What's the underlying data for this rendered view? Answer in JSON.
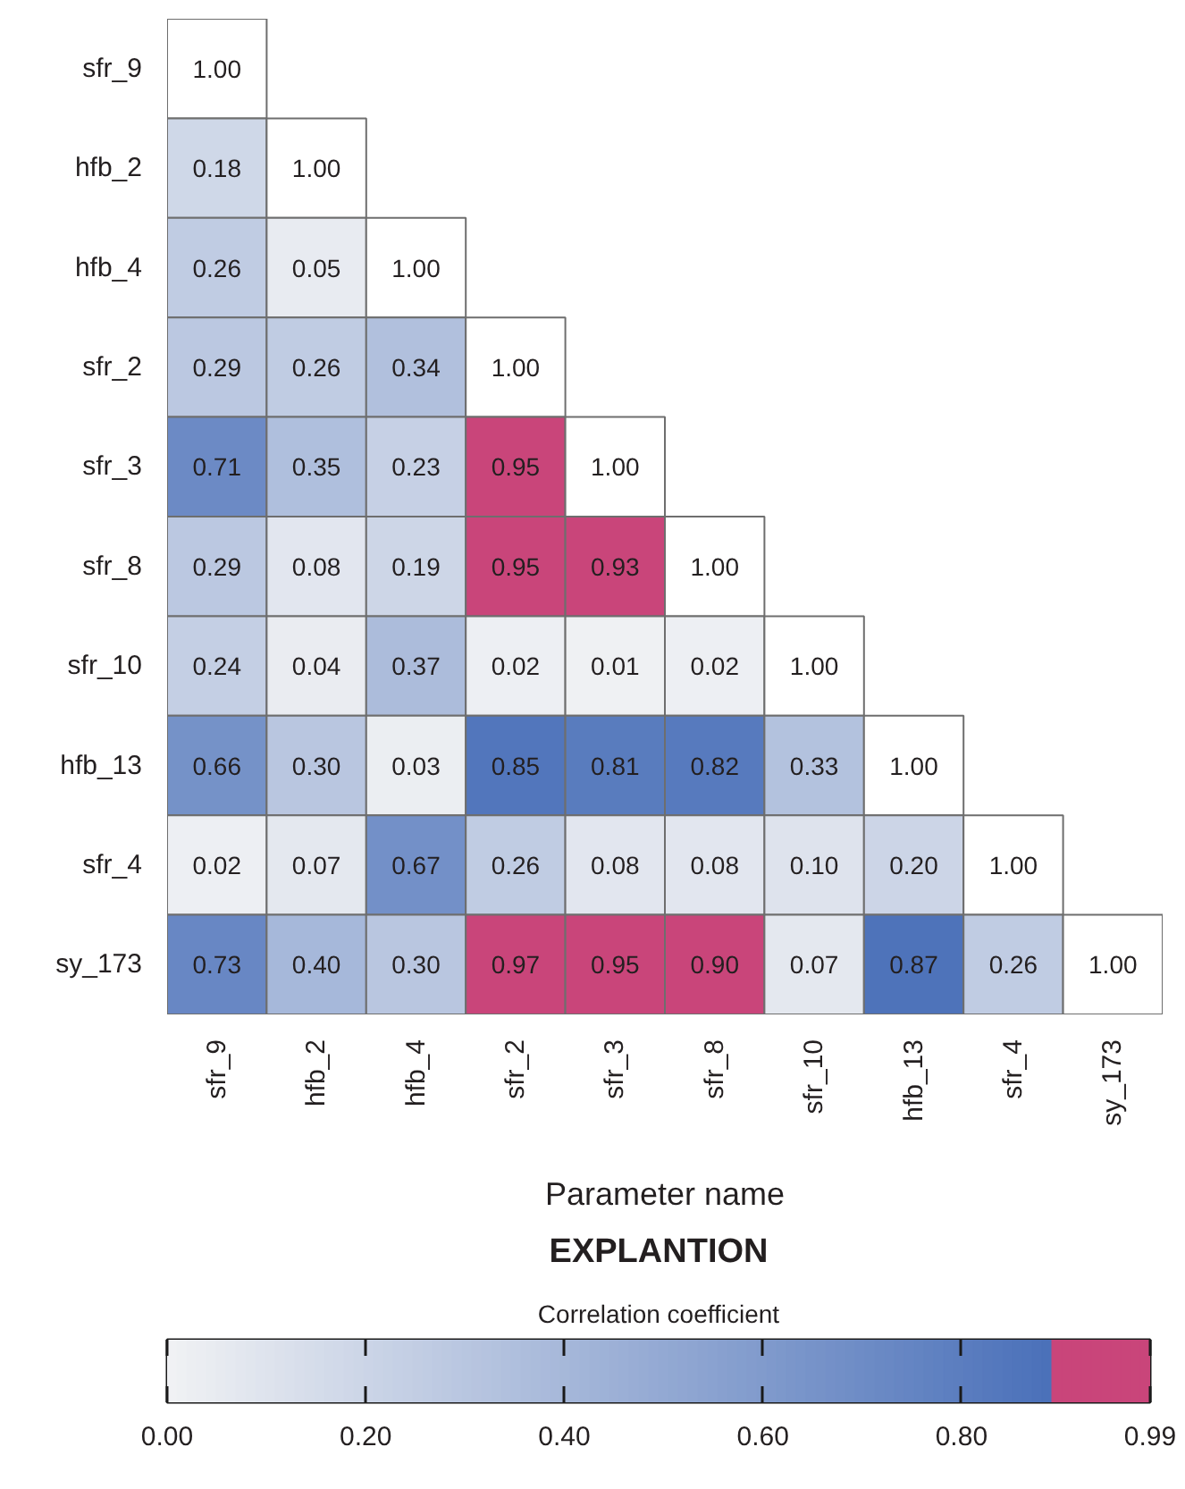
{
  "chart_data": {
    "type": "heatmap",
    "xlabel": "Parameter name",
    "legend_title": "EXPLANTION",
    "clabel": "Correlation coefficient",
    "categories": [
      "sfr_9",
      "hfb_2",
      "hfb_4",
      "sfr_2",
      "sfr_3",
      "sfr_8",
      "sfr_10",
      "hfb_13",
      "sfr_4",
      "sy_173"
    ],
    "y_categories": [
      "sfr_9",
      "hfb_2",
      "hfb_4",
      "sfr_2",
      "sfr_3",
      "sfr_8",
      "sfr_10",
      "hfb_13",
      "sfr_4",
      "sy_173"
    ],
    "cells": [
      [
        null,
        null,
        null,
        null,
        null,
        null,
        null,
        null,
        null,
        null
      ],
      [
        0.18,
        null,
        null,
        null,
        null,
        null,
        null,
        null,
        null,
        null
      ],
      [
        0.26,
        0.05,
        null,
        null,
        null,
        null,
        null,
        null,
        null,
        null
      ],
      [
        0.29,
        0.26,
        0.34,
        null,
        null,
        null,
        null,
        null,
        null,
        null
      ],
      [
        0.71,
        0.35,
        0.23,
        0.95,
        null,
        null,
        null,
        null,
        null,
        null
      ],
      [
        0.29,
        0.08,
        0.19,
        0.95,
        0.93,
        null,
        null,
        null,
        null,
        null
      ],
      [
        0.24,
        0.04,
        0.37,
        0.02,
        0.01,
        0.02,
        null,
        null,
        null,
        null
      ],
      [
        0.66,
        0.3,
        0.03,
        0.85,
        0.81,
        0.82,
        0.33,
        null,
        null,
        null
      ],
      [
        0.02,
        0.07,
        0.67,
        0.26,
        0.08,
        0.08,
        0.1,
        0.2,
        null,
        null
      ],
      [
        0.73,
        0.4,
        0.3,
        0.97,
        0.95,
        0.9,
        0.07,
        0.87,
        0.26,
        null
      ]
    ],
    "cell_labels": [
      [
        "1.00",
        null,
        null,
        null,
        null,
        null,
        null,
        null,
        null,
        null
      ],
      [
        "0.18",
        "1.00",
        null,
        null,
        null,
        null,
        null,
        null,
        null,
        null
      ],
      [
        "0.26",
        "0.05",
        "1.00",
        null,
        null,
        null,
        null,
        null,
        null,
        null
      ],
      [
        "0.29",
        "0.26",
        "0.34",
        "1.00",
        null,
        null,
        null,
        null,
        null,
        null
      ],
      [
        "0.71",
        "0.35",
        "0.23",
        "0.95",
        "1.00",
        null,
        null,
        null,
        null,
        null
      ],
      [
        "0.29",
        "0.08",
        "0.19",
        "0.95",
        "0.93",
        "1.00",
        null,
        null,
        null,
        null
      ],
      [
        "0.24",
        "0.04",
        "0.37",
        "0.02",
        "0.01",
        "0.02",
        "1.00",
        null,
        null,
        null
      ],
      [
        "0.66",
        "0.30",
        "0.03",
        "0.85",
        "0.81",
        "0.82",
        "0.33",
        "1.00",
        null,
        null
      ],
      [
        "0.02",
        "0.07",
        "0.67",
        "0.26",
        "0.08",
        "0.08",
        "0.10",
        "0.20",
        "1.00",
        null
      ],
      [
        "0.73",
        "0.40",
        "0.30",
        "0.97",
        "0.95",
        "0.90",
        "0.07",
        "0.87",
        "0.26",
        "1.00"
      ]
    ],
    "clim": [
      0,
      0.99
    ],
    "cticks": [
      {
        "value": 0,
        "label": "0.00"
      },
      {
        "value": 0.2,
        "label": "0.20"
      },
      {
        "value": 0.4,
        "label": "0.40"
      },
      {
        "value": 0.6,
        "label": "0.60"
      },
      {
        "value": 0.8,
        "label": "0.80"
      },
      0.99
    ]
  }
}
